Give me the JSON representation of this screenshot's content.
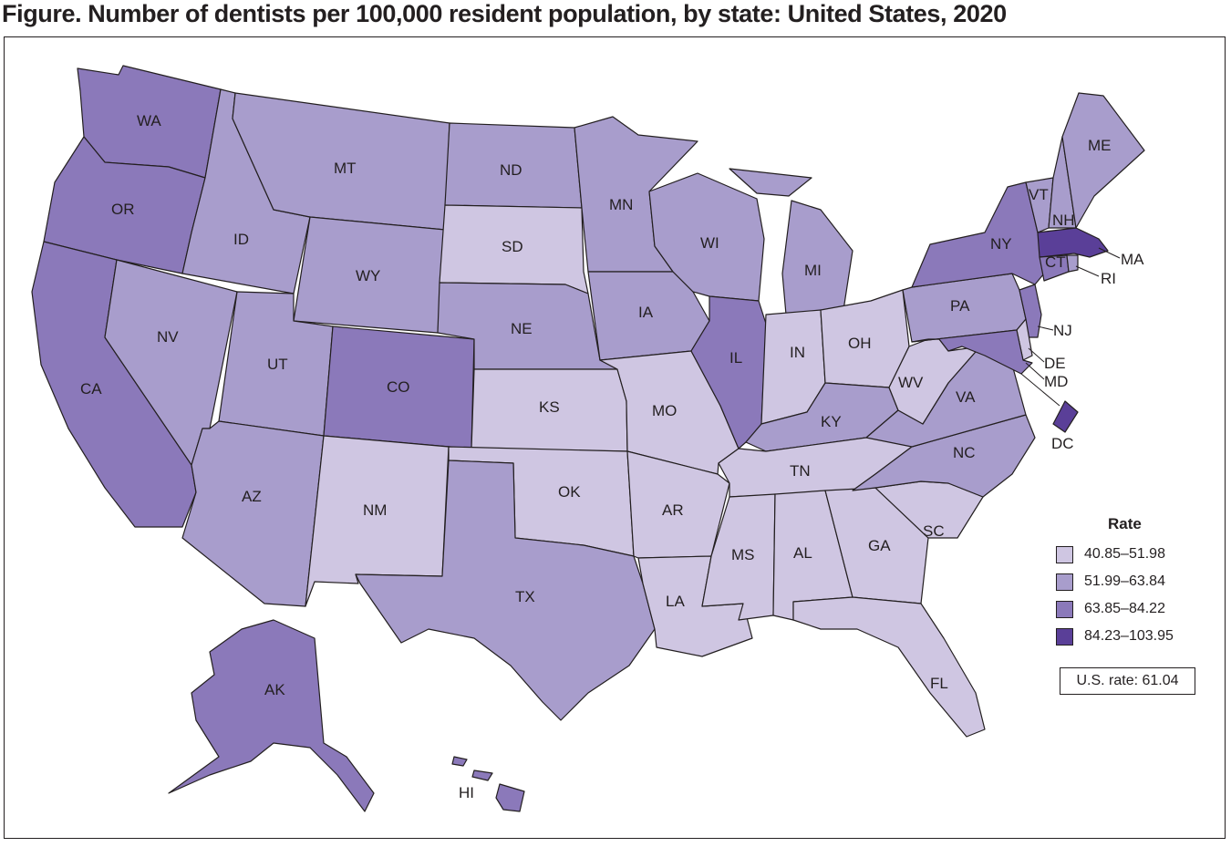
{
  "title": "Figure. Number of dentists per 100,000 resident population, by state: United States, 2020",
  "legend": {
    "title": "Rate",
    "classes": [
      {
        "label": "40.85–51.98",
        "color": "#cfc6e2"
      },
      {
        "label": "51.99–63.84",
        "color": "#a89dcc"
      },
      {
        "label": "63.85–84.22",
        "color": "#8b79ba"
      },
      {
        "label": "84.23–103.95",
        "color": "#5a3f98"
      }
    ]
  },
  "us_rate": "U.S. rate: 61.04",
  "states": [
    {
      "abbr": "WA",
      "class": 2
    },
    {
      "abbr": "OR",
      "class": 2
    },
    {
      "abbr": "CA",
      "class": 2
    },
    {
      "abbr": "NV",
      "class": 1
    },
    {
      "abbr": "ID",
      "class": 1
    },
    {
      "abbr": "MT",
      "class": 1
    },
    {
      "abbr": "WY",
      "class": 1
    },
    {
      "abbr": "UT",
      "class": 1
    },
    {
      "abbr": "AZ",
      "class": 1
    },
    {
      "abbr": "CO",
      "class": 2
    },
    {
      "abbr": "NM",
      "class": 0
    },
    {
      "abbr": "ND",
      "class": 1
    },
    {
      "abbr": "SD",
      "class": 0
    },
    {
      "abbr": "NE",
      "class": 1
    },
    {
      "abbr": "KS",
      "class": 0
    },
    {
      "abbr": "OK",
      "class": 0
    },
    {
      "abbr": "TX",
      "class": 1
    },
    {
      "abbr": "MN",
      "class": 1
    },
    {
      "abbr": "IA",
      "class": 1
    },
    {
      "abbr": "MO",
      "class": 0
    },
    {
      "abbr": "AR",
      "class": 0
    },
    {
      "abbr": "LA",
      "class": 0
    },
    {
      "abbr": "WI",
      "class": 1
    },
    {
      "abbr": "IL",
      "class": 2
    },
    {
      "abbr": "MI",
      "class": 1
    },
    {
      "abbr": "IN",
      "class": 0
    },
    {
      "abbr": "OH",
      "class": 0
    },
    {
      "abbr": "KY",
      "class": 1
    },
    {
      "abbr": "TN",
      "class": 0
    },
    {
      "abbr": "MS",
      "class": 0
    },
    {
      "abbr": "AL",
      "class": 0
    },
    {
      "abbr": "GA",
      "class": 0
    },
    {
      "abbr": "FL",
      "class": 0
    },
    {
      "abbr": "SC",
      "class": 0
    },
    {
      "abbr": "NC",
      "class": 1
    },
    {
      "abbr": "VA",
      "class": 1
    },
    {
      "abbr": "WV",
      "class": 0
    },
    {
      "abbr": "PA",
      "class": 1
    },
    {
      "abbr": "NY",
      "class": 2
    },
    {
      "abbr": "VT",
      "class": 1
    },
    {
      "abbr": "NH",
      "class": 1
    },
    {
      "abbr": "ME",
      "class": 1
    },
    {
      "abbr": "MA",
      "class": 3
    },
    {
      "abbr": "RI",
      "class": 1
    },
    {
      "abbr": "CT",
      "class": 2
    },
    {
      "abbr": "NJ",
      "class": 2
    },
    {
      "abbr": "DE",
      "class": 0
    },
    {
      "abbr": "MD",
      "class": 2
    },
    {
      "abbr": "DC",
      "class": 3
    },
    {
      "abbr": "AK",
      "class": 2
    },
    {
      "abbr": "HI",
      "class": 2
    }
  ]
}
